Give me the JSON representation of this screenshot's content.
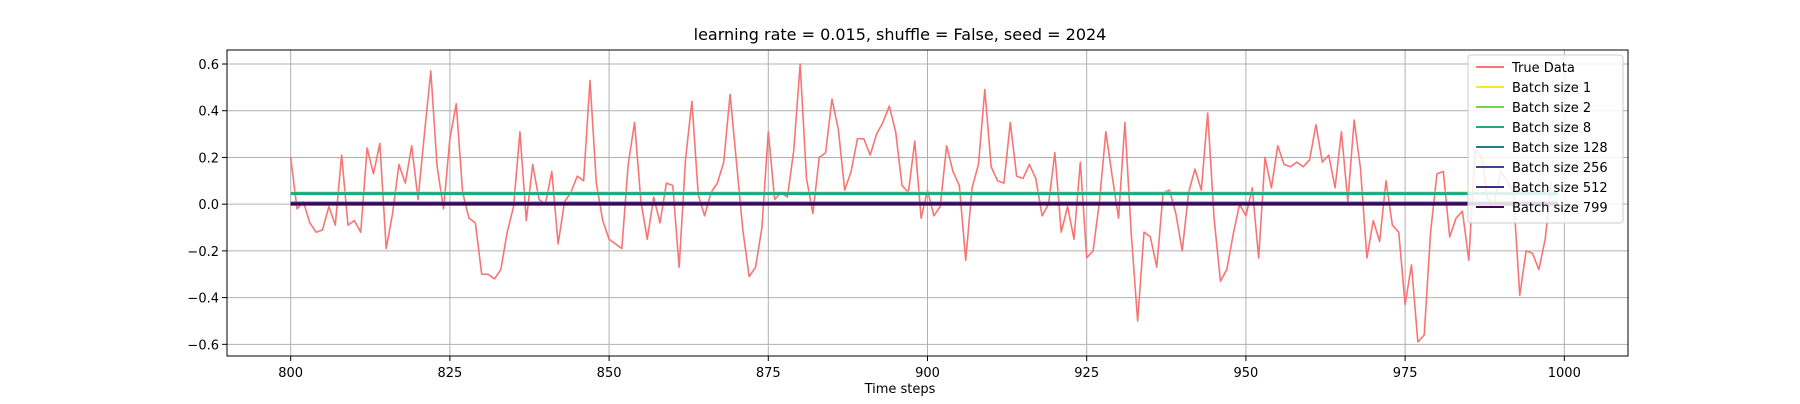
{
  "chart_data": {
    "type": "line",
    "title": "learning rate = 0.015, shuffle = False, seed = 2024",
    "xlabel": "Time steps",
    "ylabel": "",
    "xlim": [
      790,
      1010
    ],
    "ylim": [
      -0.65,
      0.66
    ],
    "xticks": [
      800,
      825,
      850,
      875,
      900,
      925,
      950,
      975,
      1000
    ],
    "yticks": [
      -0.6,
      -0.4,
      -0.2,
      0.0,
      0.2,
      0.4,
      0.6
    ],
    "xtick_labels": [
      "800",
      "825",
      "850",
      "875",
      "900",
      "925",
      "950",
      "975",
      "1000"
    ],
    "ytick_labels": [
      "−0.6",
      "−0.4",
      "−0.2",
      "0.0",
      "0.2",
      "0.4",
      "0.6"
    ],
    "grid": true,
    "legend_position": "top-right",
    "x_start": 800,
    "series": [
      {
        "name": "True Data",
        "color": "#f87575",
        "values": [
          0.2,
          -0.02,
          0.01,
          -0.08,
          -0.12,
          -0.11,
          -0.01,
          -0.09,
          0.21,
          -0.09,
          -0.07,
          -0.12,
          0.24,
          0.13,
          0.26,
          -0.19,
          -0.04,
          0.17,
          0.09,
          0.25,
          0.02,
          0.3,
          0.57,
          0.16,
          -0.02,
          0.28,
          0.43,
          0.05,
          -0.06,
          -0.08,
          -0.3,
          -0.3,
          -0.32,
          -0.28,
          -0.12,
          -0.01,
          0.31,
          -0.07,
          0.17,
          0.02,
          0.0,
          0.14,
          -0.17,
          0.01,
          0.05,
          0.12,
          0.1,
          0.53,
          0.09,
          -0.07,
          -0.15,
          -0.17,
          -0.19,
          0.17,
          0.35,
          0.01,
          -0.15,
          0.03,
          -0.08,
          0.09,
          0.08,
          -0.27,
          0.19,
          0.44,
          0.04,
          -0.05,
          0.05,
          0.09,
          0.18,
          0.47,
          0.18,
          -0.11,
          -0.31,
          -0.27,
          -0.1,
          0.31,
          0.02,
          0.05,
          0.03,
          0.23,
          0.6,
          0.11,
          -0.04,
          0.2,
          0.22,
          0.45,
          0.32,
          0.06,
          0.14,
          0.28,
          0.28,
          0.21,
          0.3,
          0.35,
          0.42,
          0.31,
          0.08,
          0.05,
          0.27,
          -0.06,
          0.06,
          -0.05,
          -0.01,
          0.25,
          0.14,
          0.08,
          -0.24,
          0.07,
          0.17,
          0.49,
          0.16,
          0.1,
          0.09,
          0.35,
          0.12,
          0.11,
          0.17,
          0.11,
          -0.05,
          0.0,
          0.22,
          -0.12,
          -0.01,
          -0.15,
          0.18,
          -0.23,
          -0.2,
          0.01,
          0.31,
          0.12,
          -0.06,
          0.35,
          -0.13,
          -0.5,
          -0.12,
          -0.14,
          -0.27,
          0.05,
          0.06,
          -0.04,
          -0.2,
          0.05,
          0.15,
          0.06,
          0.39,
          -0.06,
          -0.33,
          -0.28,
          -0.13,
          0.0,
          -0.05,
          0.07,
          -0.23,
          0.2,
          0.07,
          0.25,
          0.17,
          0.16,
          0.18,
          0.16,
          0.19,
          0.34,
          0.18,
          0.21,
          0.07,
          0.31,
          0.01,
          0.36,
          0.15,
          -0.23,
          -0.07,
          -0.16,
          0.1,
          -0.09,
          -0.12,
          -0.43,
          -0.26,
          -0.59,
          -0.56,
          -0.12,
          0.13,
          0.14,
          -0.14,
          -0.06,
          -0.03,
          -0.24,
          0.23,
          0.2,
          0.02,
          0.0,
          0.14,
          0.1,
          0.05,
          -0.39,
          -0.2,
          -0.21,
          -0.28,
          -0.15,
          0.1
        ]
      },
      {
        "name": "Batch size 1",
        "color": "#fde725",
        "x": [
          800,
          999
        ],
        "values": [
          0.048,
          0.048
        ]
      },
      {
        "name": "Batch size 2",
        "color": "#7ad151",
        "x": [
          800,
          999
        ],
        "values": [
          0.046,
          0.046
        ]
      },
      {
        "name": "Batch size 8",
        "color": "#22a884",
        "x": [
          800,
          999
        ],
        "values": [
          0.045,
          0.045
        ]
      },
      {
        "name": "Batch size 128",
        "color": "#2a788e",
        "x": [
          800,
          999
        ],
        "values": [
          0.005,
          0.005
        ]
      },
      {
        "name": "Batch size 256",
        "color": "#414487",
        "x": [
          800,
          999
        ],
        "values": [
          0.003,
          0.003
        ]
      },
      {
        "name": "Batch size 512",
        "color": "#3b2f7f",
        "x": [
          800,
          999
        ],
        "values": [
          0.002,
          0.002
        ]
      },
      {
        "name": "Batch size 799",
        "color": "#440154",
        "x": [
          800,
          999
        ],
        "values": [
          0.0,
          0.0
        ]
      }
    ]
  }
}
